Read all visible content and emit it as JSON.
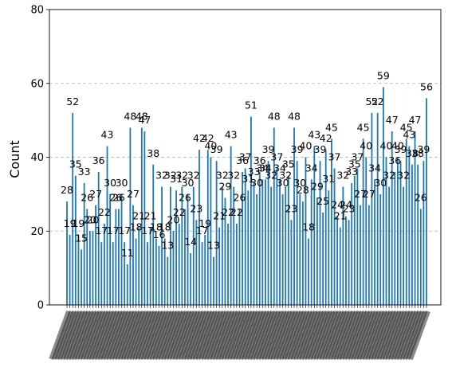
{
  "chart_data": {
    "type": "bar",
    "ylabel": "Count",
    "xlabel": "",
    "title": "",
    "ylim": [
      0,
      80
    ],
    "yticks": [
      0,
      20,
      40,
      60,
      80
    ],
    "grid": "y-dashed",
    "bar_color": "#1f77b4",
    "values": [
      28,
      19,
      52,
      35,
      19,
      15,
      33,
      26,
      20,
      20,
      27,
      36,
      17,
      22,
      43,
      30,
      17,
      26,
      26,
      30,
      17,
      11,
      48,
      27,
      18,
      21,
      48,
      47,
      17,
      21,
      38,
      18,
      16,
      32,
      18,
      13,
      32,
      20,
      31,
      22,
      32,
      26,
      30,
      14,
      32,
      23,
      42,
      17,
      19,
      42,
      40,
      13,
      39,
      21,
      32,
      29,
      22,
      43,
      32,
      22,
      26,
      36,
      37,
      31,
      51,
      33,
      30,
      36,
      34,
      34,
      39,
      32,
      48,
      37,
      34,
      30,
      32,
      35,
      23,
      48,
      39,
      30,
      28,
      40,
      18,
      34,
      43,
      29,
      39,
      25,
      42,
      31,
      45,
      37,
      24,
      21,
      32,
      24,
      23,
      33,
      35,
      37,
      27,
      45,
      40,
      27,
      52,
      34,
      52,
      30,
      59,
      40,
      32,
      47,
      36,
      40,
      39,
      32,
      45,
      43,
      38,
      47,
      38,
      26,
      39,
      56
    ]
  }
}
